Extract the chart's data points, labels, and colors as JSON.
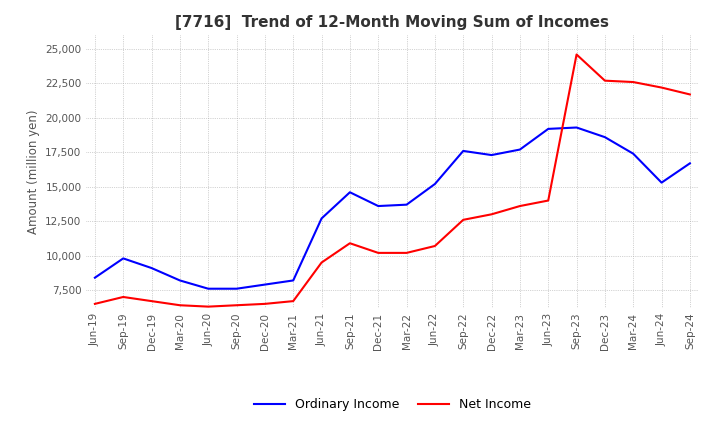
{
  "title": "[7716]  Trend of 12-Month Moving Sum of Incomes",
  "ylabel": "Amount (million yen)",
  "ylim": [
    6200,
    26000
  ],
  "yticks": [
    7500,
    10000,
    12500,
    15000,
    17500,
    20000,
    22500,
    25000
  ],
  "background_color": "#ffffff",
  "grid_color": "#aaaaaa",
  "ordinary_income_color": "#0000ff",
  "net_income_color": "#ff0000",
  "x_labels": [
    "Jun-19",
    "Sep-19",
    "Dec-19",
    "Mar-20",
    "Jun-20",
    "Sep-20",
    "Dec-20",
    "Mar-21",
    "Jun-21",
    "Sep-21",
    "Dec-21",
    "Mar-22",
    "Jun-22",
    "Sep-22",
    "Dec-22",
    "Mar-23",
    "Jun-23",
    "Sep-23",
    "Dec-23",
    "Mar-24",
    "Jun-24",
    "Sep-24"
  ],
  "ordinary_income": [
    8400,
    9800,
    9100,
    8200,
    7600,
    7600,
    7900,
    8200,
    12700,
    14600,
    13600,
    13700,
    15200,
    17600,
    17300,
    17700,
    19200,
    19300,
    18600,
    17400,
    15300,
    16700
  ],
  "net_income": [
    6500,
    7000,
    6700,
    6400,
    6300,
    6400,
    6500,
    6700,
    9500,
    10900,
    10200,
    10200,
    10700,
    12600,
    13000,
    13600,
    14000,
    24600,
    22700,
    22600,
    22200,
    21700
  ]
}
